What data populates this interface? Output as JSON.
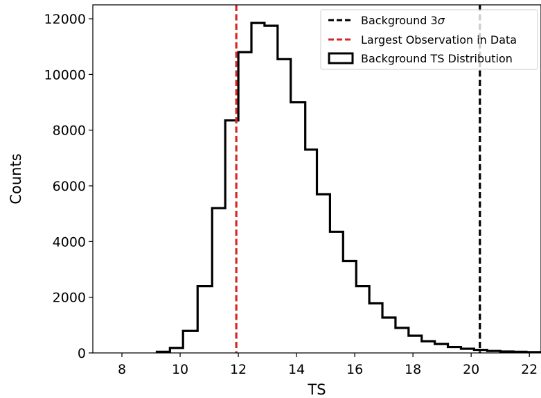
{
  "chart_data": {
    "type": "histogram",
    "xlabel": "TS",
    "ylabel": "Counts",
    "xlim": [
      7.0,
      22.4
    ],
    "ylim": [
      0,
      12500
    ],
    "xticks": [
      8,
      10,
      12,
      14,
      16,
      18,
      20,
      22
    ],
    "yticks": [
      0,
      2000,
      4000,
      6000,
      8000,
      10000,
      12000
    ],
    "grid": false,
    "legend_position": "top-right",
    "histogram": {
      "name": "Background TS Distribution",
      "color": "#000000",
      "bin_edges": [
        9.2,
        9.65,
        10.1,
        10.6,
        11.1,
        11.55,
        12.0,
        12.45,
        12.9,
        13.35,
        13.8,
        14.3,
        14.7,
        15.15,
        15.6,
        16.05,
        16.5,
        16.95,
        17.4,
        17.85,
        18.3,
        18.75,
        19.2,
        19.65,
        20.1,
        20.55,
        21.0,
        21.45,
        21.9,
        22.4
      ],
      "counts": [
        40,
        180,
        790,
        2400,
        5200,
        8350,
        10800,
        11850,
        11750,
        10550,
        9000,
        7300,
        5700,
        4350,
        3300,
        2400,
        1780,
        1270,
        900,
        620,
        420,
        320,
        210,
        150,
        110,
        70,
        50,
        40,
        30
      ]
    },
    "vlines": [
      {
        "name": "Background 3σ",
        "x": 20.3,
        "color": "#000000",
        "style": "dashed"
      },
      {
        "name": "Largest Observation in Data",
        "x": 11.93,
        "color": "#d62728",
        "style": "dashed"
      }
    ],
    "legend": [
      {
        "label_prefix": "Background 3",
        "label_symbol": "σ",
        "color": "#000000",
        "kind": "dashed-line"
      },
      {
        "label": "Largest Observation in Data",
        "color": "#d62728",
        "kind": "dashed-line"
      },
      {
        "label": "Background TS Distribution",
        "color": "#000000",
        "kind": "box"
      }
    ]
  }
}
